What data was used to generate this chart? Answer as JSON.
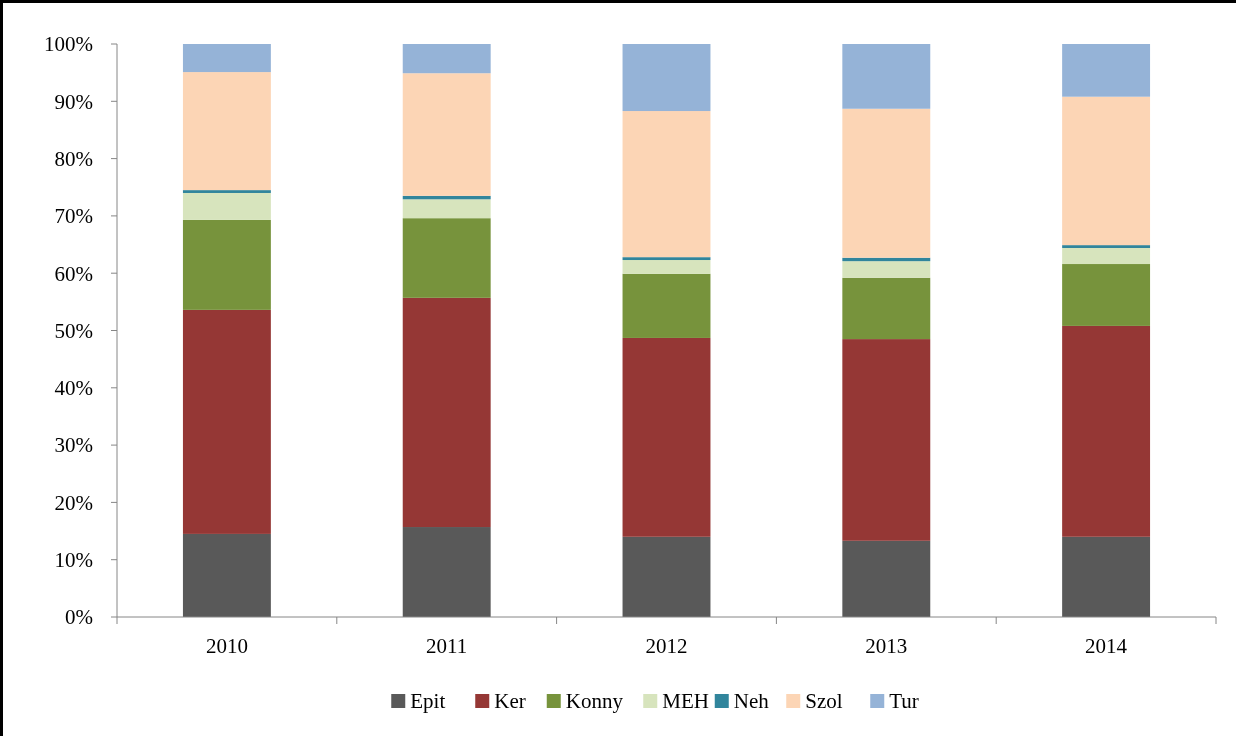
{
  "chart_data": {
    "type": "bar",
    "stacked": true,
    "categories": [
      "2010",
      "2011",
      "2012",
      "2013",
      "2014"
    ],
    "series": [
      {
        "name": "Epit",
        "color": "#595959",
        "values": [
          14.5,
          15.7,
          14.0,
          13.3,
          14.0
        ]
      },
      {
        "name": "Ker",
        "color": "#953735",
        "values": [
          39.1,
          40.0,
          34.7,
          35.2,
          36.8
        ]
      },
      {
        "name": "Konny",
        "color": "#77933c",
        "values": [
          15.7,
          13.9,
          11.2,
          10.7,
          10.8
        ]
      },
      {
        "name": "MEH",
        "color": "#d7e4bd",
        "values": [
          4.7,
          3.3,
          2.4,
          2.9,
          2.8
        ]
      },
      {
        "name": "Neh",
        "color": "#31859c",
        "values": [
          0.5,
          0.6,
          0.5,
          0.6,
          0.5
        ]
      },
      {
        "name": "Szol",
        "color": "#fcd5b5",
        "values": [
          20.6,
          21.4,
          25.5,
          26.0,
          25.9
        ]
      },
      {
        "name": "Tur",
        "color": "#95b3d7",
        "values": [
          4.9,
          5.1,
          11.7,
          11.3,
          9.2
        ]
      }
    ],
    "ylim": [
      0,
      100
    ],
    "yticks": [
      {
        "value": 0,
        "label": "0%"
      },
      {
        "value": 10,
        "label": "10%"
      },
      {
        "value": 20,
        "label": "20%"
      },
      {
        "value": 30,
        "label": "30%"
      },
      {
        "value": 40,
        "label": "40%"
      },
      {
        "value": 50,
        "label": "50%"
      },
      {
        "value": 60,
        "label": "60%"
      },
      {
        "value": 70,
        "label": "70%"
      },
      {
        "value": 80,
        "label": "80%"
      },
      {
        "value": 90,
        "label": "90%"
      },
      {
        "value": 100,
        "label": "100%"
      }
    ],
    "grid": false,
    "legend": "bottom"
  }
}
